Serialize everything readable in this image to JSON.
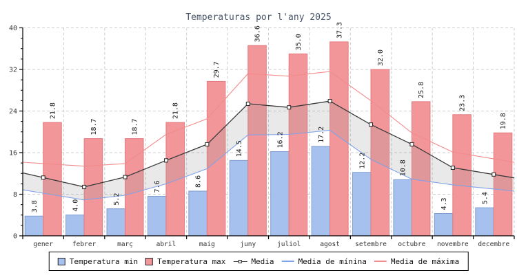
{
  "chart_data": {
    "type": "bar",
    "title": "Temperaturas por l'any 2025",
    "categories": [
      "gener",
      "febrer",
      "març",
      "abril",
      "maig",
      "juny",
      "juliol",
      "agost",
      "setembre",
      "octubre",
      "novembre",
      "decembre"
    ],
    "series": [
      {
        "name": "Temperatura min",
        "kind": "bar",
        "color": "#a6c1ed",
        "edge": "#7e9cd0",
        "data_labels": true,
        "values": [
          3.8,
          4.0,
          5.2,
          7.6,
          8.6,
          14.5,
          16.2,
          17.2,
          12.2,
          10.8,
          4.3,
          5.4
        ]
      },
      {
        "name": "Temperatura max",
        "kind": "bar",
        "color": "#f2969a",
        "edge": "#e4797e",
        "data_labels": true,
        "values": [
          21.8,
          18.7,
          18.7,
          21.8,
          29.7,
          36.6,
          35.0,
          37.3,
          32.0,
          25.8,
          23.3,
          19.8
        ]
      },
      {
        "name": "Media",
        "kind": "line",
        "color": "#3a3a3a",
        "marker": "square",
        "values": [
          11.2,
          9.4,
          11.3,
          14.5,
          17.6,
          25.4,
          24.7,
          25.9,
          21.4,
          17.6,
          13.1,
          11.8
        ]
      },
      {
        "name": "Media de mínina",
        "kind": "line",
        "color": "#7fa3e8",
        "marker": "none",
        "values": [
          8.2,
          6.9,
          7.8,
          10.0,
          12.9,
          19.4,
          19.5,
          20.3,
          14.7,
          10.9,
          9.8,
          9.0
        ]
      },
      {
        "name": "Media de máxima",
        "kind": "line",
        "color": "#f28b8b",
        "marker": "none",
        "values": [
          13.9,
          13.4,
          13.9,
          19.5,
          22.5,
          31.2,
          30.7,
          31.6,
          26.0,
          19.8,
          16.1,
          14.8
        ]
      }
    ],
    "band_between": [
      "Media de mínina",
      "Media"
    ],
    "band_color": "#999999",
    "band_opacity": 0.22,
    "ylim": [
      0,
      40
    ],
    "yticks": [
      0,
      8,
      16,
      24,
      32,
      40
    ],
    "y_minor_step": 2,
    "grid": true,
    "grid_color": "#cccccc",
    "axis_color": "#000000",
    "tick_label_color": "#333333",
    "data_label_color": "#1a1a1a",
    "title_color": "#475569",
    "legend_position": "bottom"
  }
}
